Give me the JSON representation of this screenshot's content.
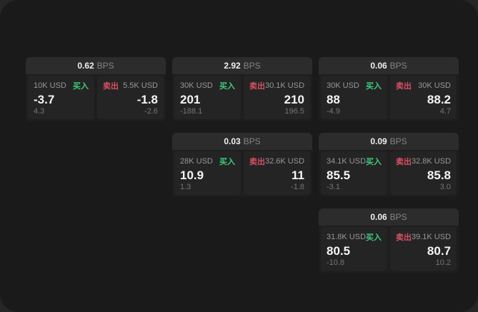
{
  "labels": {
    "bps_suffix": "BPS",
    "buy_label": "买入",
    "sell_label": "卖出"
  },
  "colors": {
    "buy": "#3ecb7c",
    "sell": "#d65064",
    "app_background": "#1a1a1a",
    "card_header_background": "#2c2c2c",
    "panel_background": "#242424"
  },
  "cards": [
    {
      "bps": "0.62",
      "row": 1,
      "col": 1,
      "buy": {
        "notional": "10K USD",
        "price": "-3.7",
        "delta": "4.3"
      },
      "sell": {
        "notional": "5.5K USD",
        "price": "-1.8",
        "delta": "-2.6"
      }
    },
    {
      "bps": "2.92",
      "row": 1,
      "col": 2,
      "buy": {
        "notional": "30K USD",
        "price": "201",
        "delta": "-188.1"
      },
      "sell": {
        "notional": "30.1K USD",
        "price": "210",
        "delta": "196.5"
      }
    },
    {
      "bps": "0.06",
      "row": 1,
      "col": 3,
      "buy": {
        "notional": "30K USD",
        "price": "88",
        "delta": "-4.9"
      },
      "sell": {
        "notional": "30K USD",
        "price": "88.2",
        "delta": "4.7"
      }
    },
    {
      "bps": "0.03",
      "row": 2,
      "col": 2,
      "buy": {
        "notional": "28K USD",
        "price": "10.9",
        "delta": "1.3"
      },
      "sell": {
        "notional": "32.6K USD",
        "price": "11",
        "delta": "-1.8"
      }
    },
    {
      "bps": "0.09",
      "row": 2,
      "col": 3,
      "buy": {
        "notional": "34.1K USD",
        "price": "85.5",
        "delta": "-3.1"
      },
      "sell": {
        "notional": "32.8K USD",
        "price": "85.8",
        "delta": "3.0"
      }
    },
    {
      "bps": "0.06",
      "row": 3,
      "col": 3,
      "buy": {
        "notional": "31.8K USD",
        "price": "80.5",
        "delta": "-10.8"
      },
      "sell": {
        "notional": "39.1K USD",
        "price": "80.7",
        "delta": "10.2"
      }
    }
  ]
}
